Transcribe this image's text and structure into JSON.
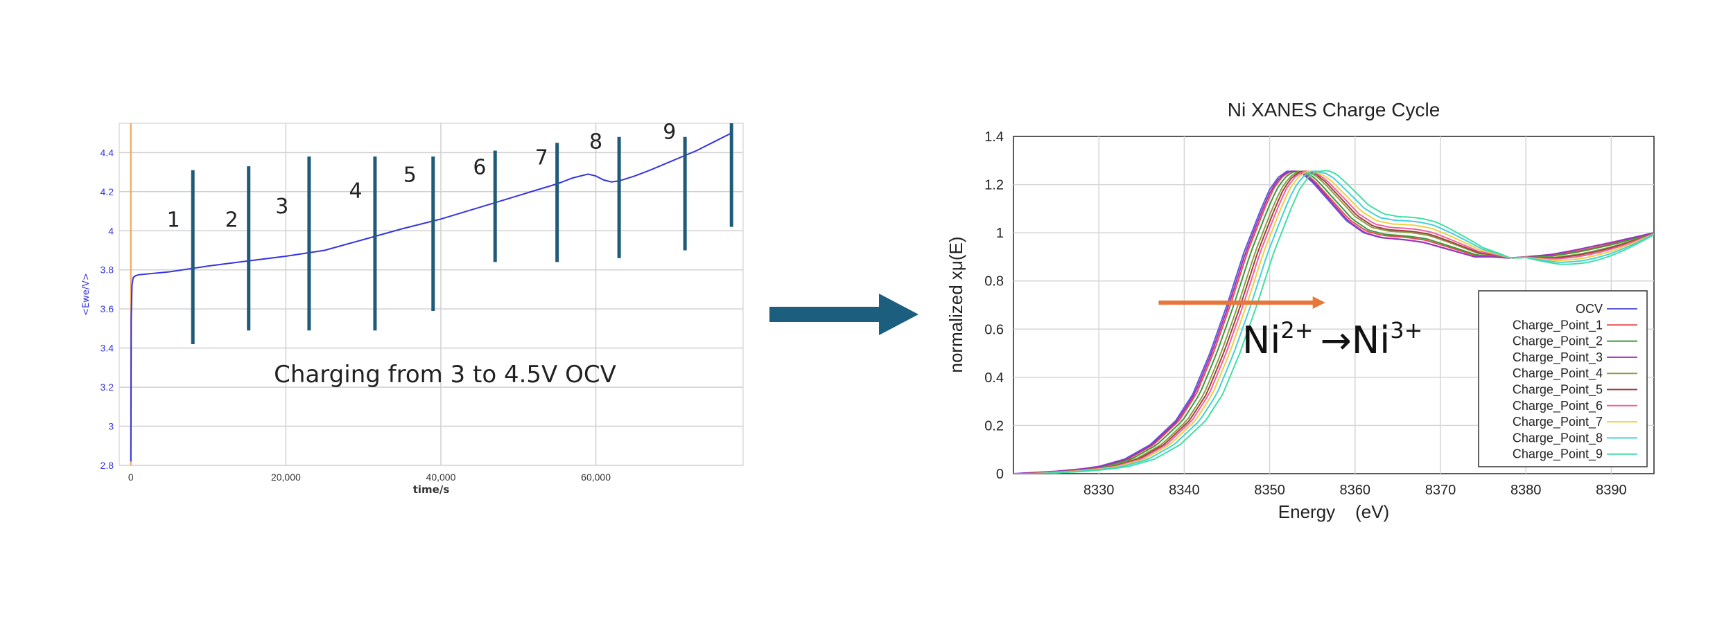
{
  "chart_data": [
    {
      "type": "line",
      "title": "",
      "xlabel": "time/s",
      "ylabel": "<Ewe/V>",
      "xlim": [
        -1500,
        79000
      ],
      "ylim": [
        2.8,
        4.55
      ],
      "x_ticks": [
        0,
        20000,
        40000,
        60000
      ],
      "x_tick_labels": [
        "0",
        "20,000",
        "40,000",
        "60,000"
      ],
      "y_ticks": [
        2.8,
        3.0,
        3.2,
        3.4,
        3.6,
        3.8,
        4.0,
        4.2,
        4.4
      ],
      "y_tick_labels": [
        "2.8",
        "3",
        "3.2",
        "3.4",
        "3.6",
        "3.8",
        "4",
        "4.2",
        "4.4"
      ],
      "grid": true,
      "series": [
        {
          "color": "#3434e0",
          "x": [
            0,
            50,
            150,
            300,
            600,
            1000,
            5000,
            10000,
            15000,
            20000,
            25000,
            30000,
            35000,
            40000,
            45000,
            50000,
            55000,
            57000,
            59000,
            60000,
            61000,
            62000,
            63000,
            65000,
            67000,
            70000,
            73000,
            75000,
            77500
          ],
          "y": [
            2.82,
            3.55,
            3.72,
            3.76,
            3.77,
            3.775,
            3.79,
            3.82,
            3.845,
            3.87,
            3.9,
            3.955,
            4.01,
            4.06,
            4.12,
            4.18,
            4.24,
            4.27,
            4.29,
            4.28,
            4.26,
            4.25,
            4.255,
            4.28,
            4.31,
            4.36,
            4.41,
            4.45,
            4.5
          ]
        }
      ],
      "markers": [
        {
          "x": 8000,
          "y_min": 3.42,
          "y_max": 4.31,
          "label": "1",
          "label_x": 5500,
          "label_y": 4.02
        },
        {
          "x": 15200,
          "y_min": 3.49,
          "y_max": 4.33,
          "label": "2",
          "label_x": 13000,
          "label_y": 4.02
        },
        {
          "x": 23000,
          "y_min": 3.49,
          "y_max": 4.38,
          "label": "3",
          "label_x": 19500,
          "label_y": 4.09
        },
        {
          "x": 31500,
          "y_min": 3.49,
          "y_max": 4.38,
          "label": "4",
          "label_x": 29000,
          "label_y": 4.17
        },
        {
          "x": 39000,
          "y_min": 3.59,
          "y_max": 4.38,
          "label": "5",
          "label_x": 36000,
          "label_y": 4.25
        },
        {
          "x": 47000,
          "y_min": 3.84,
          "y_max": 4.41,
          "label": "6",
          "label_x": 45000,
          "label_y": 4.29
        },
        {
          "x": 55000,
          "y_min": 3.84,
          "y_max": 4.45,
          "label": "7",
          "label_x": 53000,
          "label_y": 4.34
        },
        {
          "x": 63000,
          "y_min": 3.86,
          "y_max": 4.48,
          "label": "8",
          "label_x": 60000,
          "label_y": 4.42
        },
        {
          "x": 71500,
          "y_min": 3.9,
          "y_max": 4.48,
          "label": "9",
          "label_x": 69500,
          "label_y": 4.47
        },
        {
          "x": 77500,
          "y_min": 4.02,
          "y_max": 4.55,
          "label": "",
          "label_x": 0,
          "label_y": 0
        }
      ],
      "annotation": "Charging from 3 to 4.5V OCV",
      "colors": {
        "marker": "#1f5a78",
        "curve": "#3434e0",
        "start_line": "#f0a050",
        "grid": "#d0d0d0"
      }
    },
    {
      "type": "line",
      "title": "Ni XANES Charge Cycle",
      "xlabel": "Energy    (eV)",
      "ylabel": "normalized xμ(E)",
      "xlim": [
        8320,
        8395
      ],
      "ylim": [
        0,
        1.4
      ],
      "x_ticks": [
        8330,
        8340,
        8350,
        8360,
        8370,
        8380,
        8390
      ],
      "y_ticks": [
        0,
        0.2,
        0.4,
        0.6,
        0.8,
        1.0,
        1.2,
        1.4
      ],
      "y_tick_labels": [
        "0",
        "0.2",
        "0.4",
        "0.6",
        "0.8",
        "1",
        "1.2",
        "1.4"
      ],
      "grid": true,
      "legend_position": "bottom-right",
      "series": [
        {
          "name": "OCV",
          "color": "#5c5cd6",
          "shift": 0,
          "hump": 0
        },
        {
          "name": "Charge_Point_1",
          "color": "#e84a4a",
          "shift": 0.4,
          "hump": 0.01
        },
        {
          "name": "Charge_Point_2",
          "color": "#3a9a3a",
          "shift": 0.8,
          "hump": 0.015
        },
        {
          "name": "Charge_Point_3",
          "color": "#a030c0",
          "shift": 0.2,
          "hump": 0
        },
        {
          "name": "Charge_Point_4",
          "color": "#8aa040",
          "shift": 1.3,
          "hump": 0.03
        },
        {
          "name": "Charge_Point_5",
          "color": "#a04040",
          "shift": 1.6,
          "hump": 0.035
        },
        {
          "name": "Charge_Point_6",
          "color": "#f060a0",
          "shift": 1.9,
          "hump": 0.045
        },
        {
          "name": "Charge_Point_7",
          "color": "#f0d040",
          "shift": 2.3,
          "hump": 0.06
        },
        {
          "name": "Charge_Point_8",
          "color": "#40d0e0",
          "shift": 2.8,
          "hump": 0.075
        },
        {
          "name": "Charge_Point_9",
          "color": "#40e0a0",
          "shift": 3.5,
          "hump": 0.09
        }
      ],
      "ocv_curve": {
        "x": [
          8320,
          8325,
          8328,
          8330,
          8333,
          8336,
          8339,
          8341,
          8343,
          8345,
          8347,
          8349,
          8350,
          8351,
          8352,
          8353,
          8354,
          8355,
          8357,
          8359,
          8361,
          8363,
          8366,
          8368,
          8370,
          8372,
          8374,
          8376,
          8378,
          8380,
          8383,
          8386,
          8390,
          8395
        ],
        "y": [
          0.0,
          0.01,
          0.02,
          0.03,
          0.06,
          0.12,
          0.22,
          0.33,
          0.5,
          0.7,
          0.92,
          1.1,
          1.18,
          1.23,
          1.255,
          1.255,
          1.24,
          1.21,
          1.13,
          1.05,
          1.0,
          0.98,
          0.97,
          0.96,
          0.94,
          0.92,
          0.9,
          0.9,
          0.895,
          0.9,
          0.91,
          0.93,
          0.96,
          1.0
        ]
      },
      "arrow": {
        "x_start": 8337,
        "x_end": 8356.5,
        "y": 0.71,
        "color": "#e8763a"
      },
      "annotation": {
        "element": "Ni",
        "from_charge": "2+",
        "arrow": "→",
        "to_charge": "3+"
      }
    }
  ],
  "connector_arrow_color": "#1b5e7e"
}
